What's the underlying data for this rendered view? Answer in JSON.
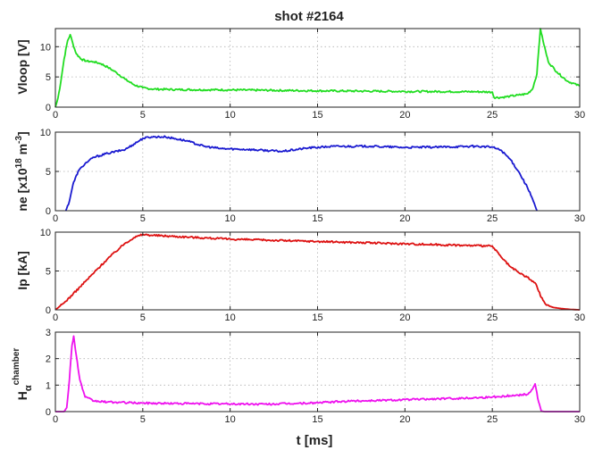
{
  "chart_data": {
    "type": "line",
    "title": "shot #2164",
    "xlabel": "t [ms]",
    "x_ticks": [
      "0",
      "5",
      "10",
      "15",
      "20",
      "25",
      "30"
    ],
    "grid": true,
    "panels": [
      {
        "id": "vloop",
        "ylabel_main": "Vloop [V]",
        "y_ticks": [
          "0",
          "5",
          "10"
        ],
        "xlim": [
          0,
          30
        ],
        "ylim": [
          0,
          13
        ],
        "series": [
          {
            "color": "#22dd22",
            "points": [
              [
                0,
                0
              ],
              [
                0.15,
                1.5
              ],
              [
                0.3,
                4
              ],
              [
                0.5,
                8
              ],
              [
                0.7,
                11
              ],
              [
                0.85,
                12
              ],
              [
                1.0,
                10.5
              ],
              [
                1.2,
                8.8
              ],
              [
                1.5,
                7.9
              ],
              [
                1.8,
                7.6
              ],
              [
                2.2,
                7.5
              ],
              [
                2.6,
                7.2
              ],
              [
                3.0,
                6.6
              ],
              [
                3.5,
                5.7
              ],
              [
                4.0,
                4.6
              ],
              [
                4.5,
                3.7
              ],
              [
                5.0,
                3.2
              ],
              [
                5.5,
                3.0
              ],
              [
                7,
                2.9
              ],
              [
                10,
                2.85
              ],
              [
                15,
                2.7
              ],
              [
                20,
                2.6
              ],
              [
                24,
                2.55
              ],
              [
                25,
                2.5
              ],
              [
                25.1,
                1.6
              ],
              [
                25.5,
                1.6
              ],
              [
                26,
                1.8
              ],
              [
                26.5,
                2.0
              ],
              [
                27,
                2.2
              ],
              [
                27.3,
                3.0
              ],
              [
                27.55,
                5.5
              ],
              [
                27.75,
                13
              ],
              [
                27.9,
                11
              ],
              [
                28.2,
                7.5
              ],
              [
                28.7,
                5.8
              ],
              [
                29.3,
                4.3
              ],
              [
                30,
                3.5
              ]
            ]
          }
        ]
      },
      {
        "id": "ne",
        "ylabel_main": "ne [x10",
        "ylabel_sup1": "18",
        "ylabel_mid": " m",
        "ylabel_sup2": "-3",
        "ylabel_end": "]",
        "y_ticks": [
          "0",
          "5",
          "10"
        ],
        "xlim": [
          0,
          30
        ],
        "ylim": [
          0,
          10
        ],
        "series": [
          {
            "color": "#1a1ad0",
            "points": [
              [
                0.6,
                0
              ],
              [
                0.8,
                1.2
              ],
              [
                1.0,
                3.3
              ],
              [
                1.3,
                5.0
              ],
              [
                1.7,
                6.0
              ],
              [
                2.2,
                6.8
              ],
              [
                3.0,
                7.3
              ],
              [
                4.0,
                7.8
              ],
              [
                4.5,
                8.5
              ],
              [
                5.0,
                9.2
              ],
              [
                5.5,
                9.4
              ],
              [
                6.3,
                9.4
              ],
              [
                7.5,
                8.9
              ],
              [
                8.5,
                8.2
              ],
              [
                9.5,
                7.9
              ],
              [
                11,
                7.8
              ],
              [
                13,
                7.55
              ],
              [
                14.5,
                8.0
              ],
              [
                16,
                8.2
              ],
              [
                18,
                8.2
              ],
              [
                20,
                8.05
              ],
              [
                22,
                8.1
              ],
              [
                24,
                8.2
              ],
              [
                25,
                8.1
              ],
              [
                25.5,
                7.7
              ],
              [
                26,
                6.6
              ],
              [
                26.5,
                5.0
              ],
              [
                27,
                3.0
              ],
              [
                27.3,
                1.5
              ],
              [
                27.55,
                0
              ]
            ]
          }
        ]
      },
      {
        "id": "ip",
        "ylabel_main": "Ip [kA]",
        "y_ticks": [
          "0",
          "5",
          "10"
        ],
        "xlim": [
          0,
          30
        ],
        "ylim": [
          0,
          10
        ],
        "series": [
          {
            "color": "#dd1111",
            "points": [
              [
                0,
                0
              ],
              [
                0.5,
                0.9
              ],
              [
                1,
                2.0
              ],
              [
                2,
                4.3
              ],
              [
                3,
                6.6
              ],
              [
                4,
                8.6
              ],
              [
                4.5,
                9.3
              ],
              [
                5,
                9.7
              ],
              [
                5.5,
                9.6
              ],
              [
                10,
                9.1
              ],
              [
                15,
                8.8
              ],
              [
                20,
                8.5
              ],
              [
                25,
                8.2
              ],
              [
                25.5,
                6.8
              ],
              [
                26,
                5.6
              ],
              [
                26.5,
                4.8
              ],
              [
                27,
                4.2
              ],
              [
                27.5,
                3.3
              ],
              [
                27.8,
                1.6
              ],
              [
                28.1,
                0.6
              ],
              [
                28.5,
                0.3
              ],
              [
                29,
                0.15
              ],
              [
                29.5,
                0.05
              ],
              [
                30,
                0
              ]
            ]
          }
        ]
      },
      {
        "id": "halpha",
        "ylabel_main": "H",
        "ylabel_sub": "α",
        "ylabel_sup": "chamber",
        "y_ticks": [
          "0",
          "1",
          "2",
          "3"
        ],
        "xlim": [
          0,
          30
        ],
        "ylim": [
          0,
          3
        ],
        "series": [
          {
            "color": "#ee11ee",
            "points": [
              [
                0,
                0
              ],
              [
                0.5,
                0
              ],
              [
                0.65,
                0.15
              ],
              [
                0.8,
                1.2
              ],
              [
                0.95,
                2.5
              ],
              [
                1.05,
                2.85
              ],
              [
                1.2,
                2.1
              ],
              [
                1.4,
                1.2
              ],
              [
                1.7,
                0.55
              ],
              [
                2.2,
                0.4
              ],
              [
                3,
                0.36
              ],
              [
                5,
                0.32
              ],
              [
                8,
                0.3
              ],
              [
                12,
                0.28
              ],
              [
                14.5,
                0.32
              ],
              [
                17,
                0.4
              ],
              [
                20,
                0.45
              ],
              [
                23,
                0.5
              ],
              [
                25,
                0.55
              ],
              [
                26,
                0.6
              ],
              [
                27,
                0.65
              ],
              [
                27.3,
                0.85
              ],
              [
                27.45,
                1.05
              ],
              [
                27.6,
                0.5
              ],
              [
                27.8,
                0.02
              ],
              [
                28,
                0
              ],
              [
                30,
                0
              ]
            ]
          }
        ]
      }
    ]
  }
}
